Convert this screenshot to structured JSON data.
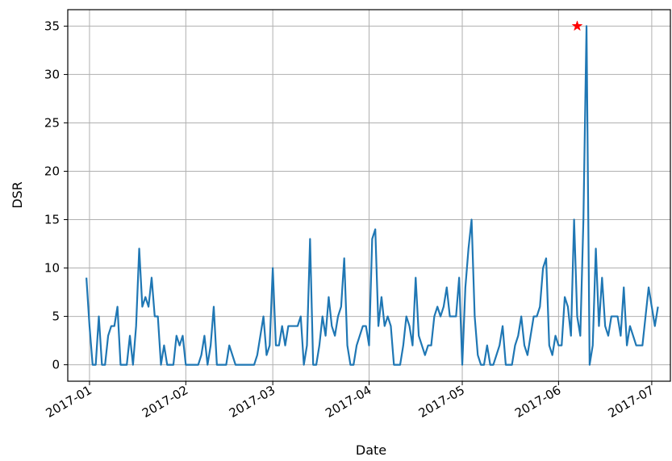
{
  "chart_data": {
    "type": "line",
    "title": "",
    "xlabel": "Date",
    "ylabel": "DSR",
    "x_start": "2016-12-31",
    "x_end": "2017-06-30",
    "xlim": [
      "2016-12-25",
      "2017-07-07"
    ],
    "ylim": [
      -1.7,
      36.7
    ],
    "x_ticks": [
      "2017-01-01",
      "2017-02-01",
      "2017-03-01",
      "2017-04-01",
      "2017-05-01",
      "2017-06-01",
      "2017-07-01"
    ],
    "x_tick_labels": [
      "2017-01",
      "2017-02",
      "2017-03",
      "2017-04",
      "2017-05",
      "2017-06",
      "2017-07"
    ],
    "y_ticks": [
      0,
      5,
      10,
      15,
      20,
      25,
      30,
      35
    ],
    "grid": true,
    "series": [
      {
        "color": "#1f77b4",
        "values": [
          9,
          4,
          0,
          0,
          5,
          0,
          0,
          3,
          4,
          4,
          6,
          0,
          0,
          0,
          3,
          0,
          4,
          12,
          6,
          7,
          6,
          9,
          5,
          5,
          0,
          2,
          0,
          0,
          0,
          3,
          2,
          3,
          0,
          0,
          0,
          0,
          0,
          1,
          3,
          0,
          2,
          6,
          0,
          0,
          0,
          0,
          2,
          1,
          0,
          0,
          0,
          0,
          0,
          0,
          0,
          1,
          3,
          5,
          1,
          2,
          10,
          2,
          2,
          4,
          2,
          4,
          4,
          4,
          4,
          5,
          0,
          2,
          13,
          0,
          0,
          2,
          5,
          3,
          7,
          4,
          3,
          5,
          6,
          11,
          2,
          0,
          0,
          2,
          3,
          4,
          4,
          2,
          13,
          14,
          4,
          7,
          4,
          5,
          4,
          0,
          0,
          0,
          2,
          5,
          4,
          2,
          9,
          3,
          2,
          1,
          2,
          2,
          5,
          6,
          5,
          6,
          8,
          5,
          5,
          5,
          9,
          0,
          8,
          12,
          15,
          5,
          1,
          0,
          0,
          2,
          0,
          0,
          1,
          2,
          4,
          0,
          0,
          0,
          2,
          3,
          5,
          2,
          1,
          3,
          5,
          5,
          6,
          10,
          11,
          2,
          1,
          3,
          2,
          2,
          7,
          6,
          3,
          15,
          5,
          3,
          15,
          35,
          0,
          2,
          12,
          4,
          9,
          4,
          3,
          5,
          5,
          5,
          3,
          8,
          2,
          4,
          3,
          2,
          2,
          2,
          5,
          8,
          6,
          4,
          6
        ]
      }
    ],
    "marker": {
      "x": "2017-06-07",
      "y": 35,
      "symbol": "star",
      "color": "#ff0000"
    }
  }
}
